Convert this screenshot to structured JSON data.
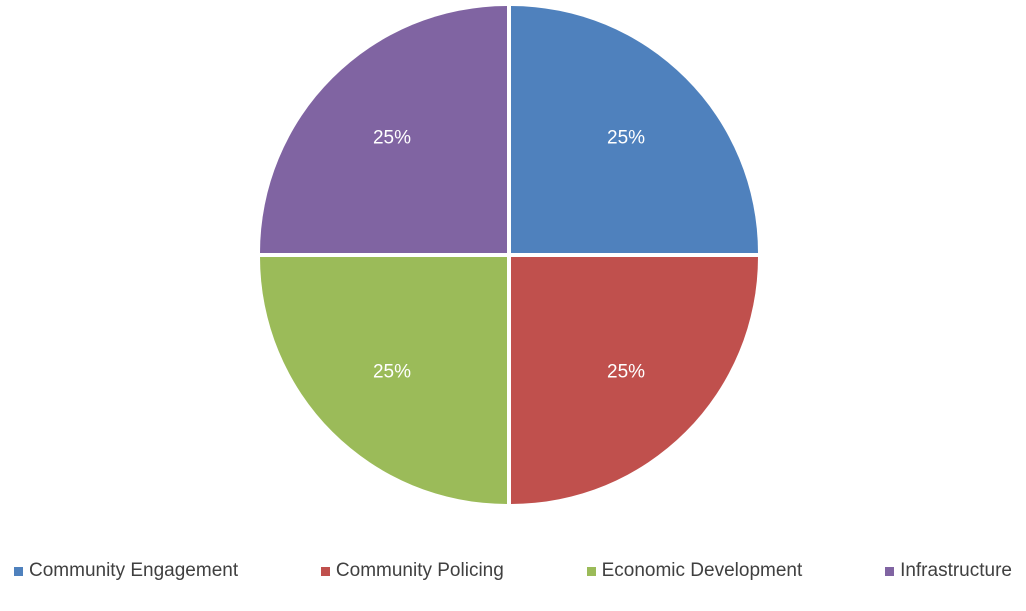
{
  "chart_data": {
    "type": "pie",
    "title": "",
    "categories": [
      "Community Engagement",
      "Community Policing",
      "Economic Development",
      "Infrastructure"
    ],
    "values": [
      25,
      25,
      25,
      25
    ],
    "data_labels": [
      "25%",
      "25%",
      "25%",
      "25%"
    ],
    "colors": [
      "#4F81BD",
      "#C0504D",
      "#9BBB59",
      "#8064A2"
    ],
    "legend_position": "bottom"
  }
}
